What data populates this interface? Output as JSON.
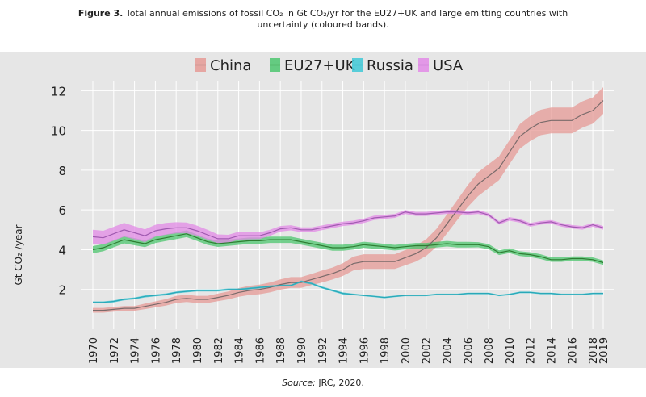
{
  "caption": {
    "figure_label": "Figure 3.",
    "line1": "Total annual emissions of fossil CO₂ in Gt CO₂/yr for the EU27+UK and large emitting countries with",
    "line2": "uncertainty (coloured bands)."
  },
  "source": {
    "label": "Source:",
    "text": "JRC, 2020."
  },
  "colors": {
    "panel_bg": "#e6e6e6",
    "grid": "#ffffff",
    "axis_text": "#222222"
  },
  "chart_data": {
    "type": "line",
    "title": "",
    "xlabel": "",
    "ylabel": "Gt CO₂ /year",
    "xlim": [
      1970,
      2019
    ],
    "ylim": [
      0,
      12.5
    ],
    "grid": true,
    "legend_position": "top-center",
    "xticks": [
      1970,
      1972,
      1974,
      1976,
      1978,
      1980,
      1982,
      1984,
      1986,
      1988,
      1990,
      1992,
      1994,
      1996,
      1998,
      2000,
      2002,
      2004,
      2006,
      2008,
      2010,
      2012,
      2014,
      2016,
      2018,
      2019
    ],
    "yticks": [
      2,
      4,
      6,
      8,
      10,
      12
    ],
    "x": [
      1970,
      1971,
      1972,
      1973,
      1974,
      1975,
      1976,
      1977,
      1978,
      1979,
      1980,
      1981,
      1982,
      1983,
      1984,
      1985,
      1986,
      1987,
      1988,
      1989,
      1990,
      1991,
      1992,
      1993,
      1994,
      1995,
      1996,
      1997,
      1998,
      1999,
      2000,
      2001,
      2002,
      2003,
      2004,
      2005,
      2006,
      2007,
      2008,
      2009,
      2010,
      2011,
      2012,
      2013,
      2014,
      2015,
      2016,
      2017,
      2018,
      2019
    ],
    "series": [
      {
        "name": "China",
        "line_color": "#7a6b6b",
        "band_color": "#e59a95",
        "values": [
          0.95,
          0.95,
          1.0,
          1.05,
          1.05,
          1.15,
          1.25,
          1.35,
          1.5,
          1.55,
          1.5,
          1.5,
          1.6,
          1.7,
          1.85,
          1.95,
          2.0,
          2.1,
          2.25,
          2.35,
          2.35,
          2.5,
          2.65,
          2.8,
          3.0,
          3.3,
          3.4,
          3.4,
          3.4,
          3.4,
          3.6,
          3.8,
          4.1,
          4.6,
          5.3,
          6.0,
          6.7,
          7.3,
          7.7,
          8.1,
          8.9,
          9.7,
          10.1,
          10.4,
          10.5,
          10.5,
          10.5,
          10.8,
          11.0,
          11.5
        ],
        "band_halfwidth": [
          0.12,
          0.12,
          0.12,
          0.12,
          0.12,
          0.14,
          0.15,
          0.16,
          0.18,
          0.18,
          0.18,
          0.18,
          0.19,
          0.2,
          0.22,
          0.23,
          0.24,
          0.25,
          0.26,
          0.27,
          0.27,
          0.28,
          0.3,
          0.3,
          0.32,
          0.35,
          0.37,
          0.37,
          0.37,
          0.37,
          0.38,
          0.4,
          0.42,
          0.45,
          0.48,
          0.5,
          0.55,
          0.6,
          0.6,
          0.6,
          0.6,
          0.62,
          0.63,
          0.64,
          0.65,
          0.65,
          0.65,
          0.66,
          0.66,
          0.67
        ]
      },
      {
        "name": "EU27+UK",
        "line_color": "#2e7d32",
        "band_color": "#4cc56e",
        "values": [
          4.0,
          4.1,
          4.3,
          4.5,
          4.4,
          4.3,
          4.5,
          4.6,
          4.7,
          4.8,
          4.6,
          4.4,
          4.3,
          4.35,
          4.4,
          4.45,
          4.45,
          4.5,
          4.5,
          4.5,
          4.4,
          4.3,
          4.2,
          4.1,
          4.1,
          4.15,
          4.25,
          4.2,
          4.15,
          4.1,
          4.15,
          4.2,
          4.2,
          4.25,
          4.3,
          4.25,
          4.25,
          4.25,
          4.15,
          3.85,
          3.95,
          3.8,
          3.75,
          3.65,
          3.5,
          3.5,
          3.55,
          3.55,
          3.5,
          3.35
        ],
        "band_halfwidth": [
          0.18,
          0.18,
          0.18,
          0.18,
          0.18,
          0.17,
          0.17,
          0.17,
          0.17,
          0.17,
          0.16,
          0.16,
          0.16,
          0.16,
          0.16,
          0.16,
          0.16,
          0.16,
          0.16,
          0.16,
          0.15,
          0.15,
          0.15,
          0.15,
          0.15,
          0.15,
          0.15,
          0.15,
          0.14,
          0.14,
          0.14,
          0.14,
          0.14,
          0.14,
          0.14,
          0.14,
          0.14,
          0.13,
          0.13,
          0.12,
          0.12,
          0.12,
          0.12,
          0.12,
          0.11,
          0.11,
          0.11,
          0.11,
          0.11,
          0.11
        ]
      },
      {
        "name": "Russia",
        "line_color": "#2aa8b8",
        "band_color": "#3ec8d6",
        "values": [
          1.35,
          1.35,
          1.4,
          1.5,
          1.55,
          1.65,
          1.7,
          1.75,
          1.85,
          1.9,
          1.95,
          1.95,
          1.95,
          2.0,
          2.0,
          2.05,
          2.1,
          2.15,
          2.2,
          2.2,
          2.4,
          2.3,
          2.1,
          1.95,
          1.8,
          1.75,
          1.7,
          1.65,
          1.6,
          1.65,
          1.7,
          1.7,
          1.7,
          1.75,
          1.75,
          1.75,
          1.8,
          1.8,
          1.8,
          1.7,
          1.75,
          1.85,
          1.85,
          1.8,
          1.8,
          1.75,
          1.75,
          1.75,
          1.8,
          1.8
        ],
        "band_halfwidth": [
          0.05,
          0.05,
          0.05,
          0.05,
          0.05,
          0.05,
          0.05,
          0.05,
          0.05,
          0.05,
          0.05,
          0.05,
          0.05,
          0.05,
          0.05,
          0.05,
          0.05,
          0.05,
          0.05,
          0.05,
          0.05,
          0.05,
          0.05,
          0.05,
          0.05,
          0.04,
          0.04,
          0.04,
          0.04,
          0.04,
          0.04,
          0.04,
          0.04,
          0.04,
          0.04,
          0.04,
          0.04,
          0.04,
          0.04,
          0.04,
          0.04,
          0.04,
          0.04,
          0.04,
          0.04,
          0.04,
          0.04,
          0.04,
          0.04,
          0.04
        ]
      },
      {
        "name": "USA",
        "line_color": "#a05ab0",
        "band_color": "#e28ae6",
        "values": [
          4.65,
          4.6,
          4.8,
          5.0,
          4.85,
          4.7,
          4.95,
          5.05,
          5.1,
          5.1,
          4.95,
          4.75,
          4.55,
          4.55,
          4.7,
          4.7,
          4.7,
          4.85,
          5.05,
          5.1,
          5.0,
          5.0,
          5.1,
          5.2,
          5.3,
          5.35,
          5.45,
          5.6,
          5.65,
          5.7,
          5.9,
          5.8,
          5.8,
          5.85,
          5.9,
          5.9,
          5.85,
          5.9,
          5.75,
          5.35,
          5.55,
          5.45,
          5.25,
          5.35,
          5.4,
          5.25,
          5.15,
          5.1,
          5.25,
          5.1
        ],
        "band_halfwidth": [
          0.35,
          0.35,
          0.35,
          0.35,
          0.33,
          0.32,
          0.3,
          0.3,
          0.28,
          0.27,
          0.26,
          0.25,
          0.22,
          0.2,
          0.2,
          0.18,
          0.17,
          0.15,
          0.14,
          0.13,
          0.12,
          0.12,
          0.12,
          0.12,
          0.11,
          0.11,
          0.11,
          0.11,
          0.1,
          0.1,
          0.1,
          0.1,
          0.1,
          0.1,
          0.1,
          0.1,
          0.1,
          0.1,
          0.09,
          0.09,
          0.09,
          0.09,
          0.09,
          0.09,
          0.09,
          0.09,
          0.09,
          0.09,
          0.09,
          0.09
        ]
      }
    ]
  }
}
